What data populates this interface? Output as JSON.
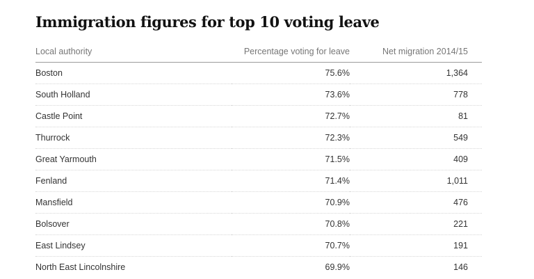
{
  "title": "Immigration figures for top 10 voting leave",
  "chart_data": {
    "type": "table",
    "title": "Immigration figures for top 10 voting leave",
    "columns": [
      "Local authority",
      "Percentage voting for leave",
      "Net migration 2014/15"
    ],
    "rows": [
      [
        "Boston",
        "75.6%",
        "1,364"
      ],
      [
        "South Holland",
        "73.6%",
        "778"
      ],
      [
        "Castle Point",
        "72.7%",
        "81"
      ],
      [
        "Thurrock",
        "72.3%",
        "549"
      ],
      [
        "Great Yarmouth",
        "71.5%",
        "409"
      ],
      [
        "Fenland",
        "71.4%",
        "1,011"
      ],
      [
        "Mansfield",
        "70.9%",
        "476"
      ],
      [
        "Bolsover",
        "70.8%",
        "221"
      ],
      [
        "East Lindsey",
        "70.7%",
        "191"
      ],
      [
        "North East Lincolnshire",
        "69.9%",
        "146"
      ]
    ]
  }
}
